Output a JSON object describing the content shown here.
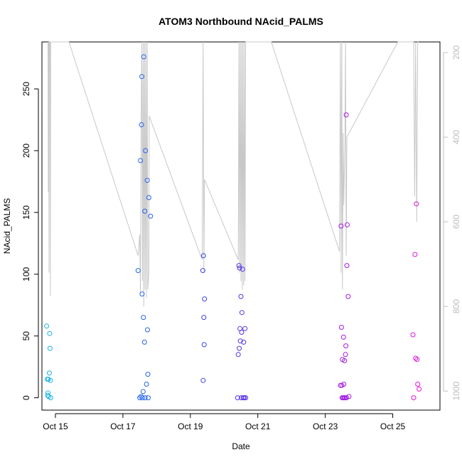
{
  "chart_data": {
    "type": "scatter",
    "title": "ATOM3 Northbound NAcid_PALMS",
    "xlabel": "Date",
    "ylabel": "NAcid_PALMS",
    "xlim": [
      14.6,
      26.4
    ],
    "ylim": [
      -10,
      288
    ],
    "y2lim": [
      1045,
      175
    ],
    "x_ticks": [
      {
        "value": 15,
        "label": "Oct 15"
      },
      {
        "value": 17,
        "label": "Oct 17"
      },
      {
        "value": 19,
        "label": "Oct 19"
      },
      {
        "value": 21,
        "label": "Oct 21"
      },
      {
        "value": 23,
        "label": "Oct 23"
      },
      {
        "value": 25,
        "label": "Oct 25"
      }
    ],
    "y_ticks": [
      0,
      50,
      100,
      150,
      200,
      250
    ],
    "y2_ticks": [
      200,
      400,
      600,
      800,
      1000
    ],
    "grid": false,
    "legend": "none",
    "colors": {
      "altitude_line": "#c8c8c8",
      "axis": "#000000",
      "right_axis": "#bdbdbd",
      "point_gradient": [
        "#19b4e6",
        "#2850ee",
        "#7a1fe6",
        "#e014dc"
      ]
    },
    "secondary_series": {
      "values": [
        [
          14.78,
          175
        ],
        [
          14.79,
          530
        ],
        [
          14.8,
          175
        ],
        [
          14.81,
          720
        ],
        [
          14.82,
          175
        ],
        [
          14.84,
          175
        ],
        [
          14.85,
          775
        ],
        [
          14.86,
          175
        ],
        [
          15.4,
          175
        ],
        [
          17.45,
          680
        ],
        [
          17.5,
          630
        ],
        [
          17.52,
          770
        ],
        [
          17.54,
          365
        ],
        [
          17.56,
          175
        ],
        [
          17.58,
          740
        ],
        [
          17.6,
          175
        ],
        [
          17.62,
          800
        ],
        [
          17.64,
          175
        ],
        [
          17.66,
          760
        ],
        [
          17.68,
          175
        ],
        [
          17.7,
          780
        ],
        [
          17.72,
          175
        ],
        [
          17.74,
          760
        ],
        [
          17.77,
          720
        ],
        [
          17.78,
          350
        ],
        [
          19.35,
          690
        ],
        [
          19.38,
          175
        ],
        [
          19.4,
          720
        ],
        [
          19.42,
          500
        ],
        [
          20.42,
          690
        ],
        [
          20.44,
          175
        ],
        [
          20.46,
          720
        ],
        [
          20.48,
          175
        ],
        [
          20.5,
          740
        ],
        [
          20.52,
          175
        ],
        [
          20.54,
          760
        ],
        [
          20.56,
          175
        ],
        [
          20.58,
          750
        ],
        [
          20.6,
          175
        ],
        [
          20.62,
          740
        ],
        [
          20.64,
          175
        ],
        [
          21.4,
          175
        ],
        [
          23.42,
          670
        ],
        [
          23.45,
          175
        ],
        [
          23.47,
          720
        ],
        [
          23.49,
          175
        ],
        [
          23.51,
          760
        ],
        [
          23.53,
          390
        ],
        [
          23.55,
          560
        ],
        [
          23.58,
          420
        ],
        [
          23.6,
          175
        ],
        [
          23.62,
          680
        ],
        [
          23.64,
          400
        ],
        [
          25.15,
          175
        ],
        [
          25.62,
          175
        ],
        [
          25.65,
          540
        ],
        [
          25.68,
          175
        ],
        [
          25.71,
          600
        ],
        [
          25.74,
          175
        ],
        [
          25.76,
          175
        ]
      ]
    },
    "series": [
      {
        "values": [
          [
            14.74,
            58
          ],
          [
            14.76,
            15
          ],
          [
            14.77,
            2
          ],
          [
            14.78,
            4
          ],
          [
            14.79,
            15
          ],
          [
            14.8,
            1
          ],
          [
            14.82,
            20
          ],
          [
            14.83,
            52
          ],
          [
            14.84,
            40
          ],
          [
            14.85,
            14
          ],
          [
            14.86,
            0
          ],
          [
            17.45,
            103
          ],
          [
            17.5,
            0
          ],
          [
            17.52,
            192
          ],
          [
            17.54,
            1
          ],
          [
            17.55,
            221
          ],
          [
            17.56,
            260
          ],
          [
            17.57,
            84
          ],
          [
            17.58,
            0
          ],
          [
            17.6,
            5
          ],
          [
            17.61,
            65
          ],
          [
            17.62,
            276
          ],
          [
            17.64,
            45
          ],
          [
            17.65,
            151
          ],
          [
            17.66,
            0
          ],
          [
            17.67,
            200
          ],
          [
            17.7,
            11
          ],
          [
            17.72,
            176
          ],
          [
            17.73,
            55
          ],
          [
            17.74,
            19
          ],
          [
            17.75,
            0
          ],
          [
            17.77,
            162
          ],
          [
            17.82,
            147
          ],
          [
            19.37,
            103
          ],
          [
            19.38,
            14
          ],
          [
            19.39,
            115
          ],
          [
            19.4,
            65
          ],
          [
            19.41,
            43
          ],
          [
            19.42,
            80
          ],
          [
            20.4,
            0
          ],
          [
            20.42,
            35
          ],
          [
            20.44,
            107
          ],
          [
            20.45,
            40
          ],
          [
            20.46,
            105
          ],
          [
            20.47,
            56
          ],
          [
            20.48,
            46
          ],
          [
            20.5,
            82
          ],
          [
            20.51,
            0
          ],
          [
            20.52,
            53
          ],
          [
            20.53,
            69
          ],
          [
            20.55,
            104
          ],
          [
            20.57,
            0
          ],
          [
            20.58,
            45
          ],
          [
            20.6,
            0
          ],
          [
            20.62,
            56
          ],
          [
            20.64,
            0
          ],
          [
            23.45,
            10
          ],
          [
            23.47,
            139
          ],
          [
            23.48,
            57
          ],
          [
            23.49,
            10
          ],
          [
            23.5,
            0
          ],
          [
            23.51,
            31
          ],
          [
            23.53,
            0
          ],
          [
            23.54,
            49
          ],
          [
            23.55,
            11
          ],
          [
            23.56,
            0
          ],
          [
            23.57,
            30
          ],
          [
            23.59,
            0
          ],
          [
            23.6,
            35
          ],
          [
            23.61,
            42
          ],
          [
            23.62,
            229
          ],
          [
            23.63,
            0
          ],
          [
            23.64,
            107
          ],
          [
            23.65,
            140
          ],
          [
            23.68,
            82
          ],
          [
            23.7,
            1
          ],
          [
            25.6,
            51
          ],
          [
            25.62,
            0
          ],
          [
            25.66,
            116
          ],
          [
            25.68,
            32
          ],
          [
            25.7,
            157
          ],
          [
            25.72,
            31
          ],
          [
            25.74,
            11
          ],
          [
            25.78,
            7
          ]
        ]
      }
    ]
  }
}
